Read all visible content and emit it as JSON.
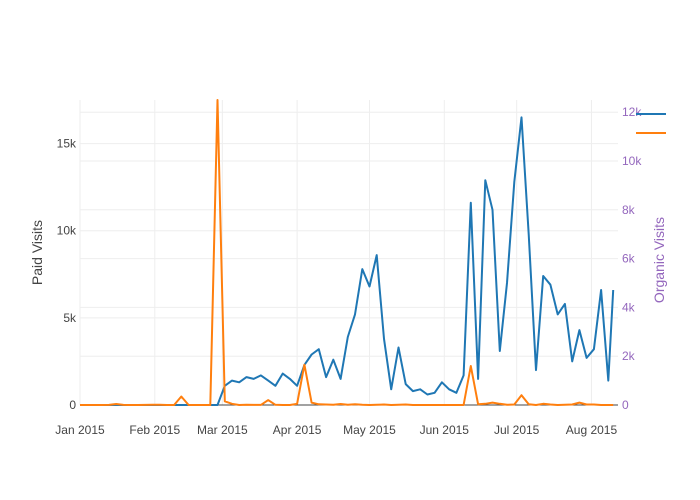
{
  "chart_data": {
    "type": "line",
    "title": "",
    "x_dates": [
      "2015-01-01",
      "2015-01-04",
      "2015-01-07",
      "2015-01-10",
      "2015-01-13",
      "2015-01-16",
      "2015-01-19",
      "2015-01-22",
      "2015-01-25",
      "2015-01-28",
      "2015-01-31",
      "2015-02-03",
      "2015-02-06",
      "2015-02-09",
      "2015-02-12",
      "2015-02-15",
      "2015-02-18",
      "2015-02-21",
      "2015-02-24",
      "2015-02-27",
      "2015-03-02",
      "2015-03-05",
      "2015-03-08",
      "2015-03-11",
      "2015-03-14",
      "2015-03-17",
      "2015-03-20",
      "2015-03-23",
      "2015-03-26",
      "2015-03-29",
      "2015-04-01",
      "2015-04-04",
      "2015-04-07",
      "2015-04-10",
      "2015-04-13",
      "2015-04-16",
      "2015-04-19",
      "2015-04-22",
      "2015-04-25",
      "2015-04-28",
      "2015-05-01",
      "2015-05-04",
      "2015-05-07",
      "2015-05-10",
      "2015-05-13",
      "2015-05-16",
      "2015-05-19",
      "2015-05-22",
      "2015-05-25",
      "2015-05-28",
      "2015-05-31",
      "2015-06-03",
      "2015-06-06",
      "2015-06-09",
      "2015-06-12",
      "2015-06-15",
      "2015-06-18",
      "2015-06-21",
      "2015-06-24",
      "2015-06-27",
      "2015-06-30",
      "2015-07-03",
      "2015-07-06",
      "2015-07-09",
      "2015-07-12",
      "2015-07-15",
      "2015-07-18",
      "2015-07-21",
      "2015-07-24",
      "2015-07-27",
      "2015-07-30",
      "2015-08-02",
      "2015-08-05",
      "2015-08-08",
      "2015-08-10"
    ],
    "series": [
      {
        "axis": "left",
        "color": "#1f77b4",
        "values": [
          0,
          0,
          0,
          0,
          0,
          0,
          0,
          0,
          0,
          0,
          0,
          0,
          0,
          0,
          0,
          0,
          0,
          0,
          0,
          0,
          1100,
          1400,
          1300,
          1600,
          1500,
          1700,
          1400,
          1100,
          1800,
          1500,
          1100,
          2300,
          2900,
          3200,
          1600,
          2600,
          1500,
          3900,
          5200,
          7800,
          6800,
          8600,
          3800,
          900,
          3300,
          1200,
          800,
          900,
          600,
          700,
          1300,
          900,
          700,
          1700,
          11600,
          1500,
          12900,
          11200,
          3100,
          7000,
          12800,
          16500,
          9800,
          2000,
          7400,
          6900,
          5200,
          5800,
          2500,
          4300,
          2700,
          3200,
          6600,
          1400,
          6600
        ]
      },
      {
        "axis": "right",
        "color": "#ff7f0e",
        "values": [
          0,
          0,
          0,
          0,
          5,
          40,
          5,
          0,
          0,
          5,
          10,
          10,
          0,
          0,
          350,
          0,
          0,
          0,
          0,
          12500,
          150,
          50,
          0,
          10,
          5,
          5,
          200,
          10,
          0,
          0,
          50,
          1650,
          100,
          30,
          20,
          10,
          40,
          10,
          30,
          10,
          0,
          10,
          20,
          0,
          10,
          20,
          0,
          0,
          0,
          0,
          0,
          0,
          0,
          0,
          1600,
          30,
          50,
          100,
          50,
          10,
          20,
          400,
          30,
          0,
          50,
          20,
          0,
          10,
          20,
          100,
          20,
          20,
          0,
          0,
          0
        ]
      }
    ],
    "xaxis": {
      "range": [
        "2015-01-01",
        "2015-08-12"
      ],
      "ticks": [
        "2015-01-01",
        "2015-02-01",
        "2015-03-01",
        "2015-04-01",
        "2015-05-01",
        "2015-06-01",
        "2015-07-01",
        "2015-08-01"
      ],
      "tick_labels": [
        "Jan 2015",
        "Feb 2015",
        "Mar 2015",
        "Apr 2015",
        "May 2015",
        "Jun 2015",
        "Jul 2015",
        "Aug 2015"
      ]
    },
    "yaxis_left": {
      "title": "Paid Visits",
      "range": [
        0,
        17500
      ],
      "ticks": [
        0,
        5000,
        10000,
        15000
      ],
      "tick_labels": [
        "0",
        "5k",
        "10k",
        "15k"
      ],
      "color": "#444444"
    },
    "yaxis_right": {
      "title": "Organic Visits",
      "range": [
        0,
        12500
      ],
      "ticks": [
        0,
        2000,
        4000,
        6000,
        8000,
        10000,
        12000
      ],
      "tick_labels": [
        "0",
        "2k",
        "4k",
        "6k",
        "8k",
        "10k",
        "12k"
      ],
      "color": "#9467bd"
    },
    "grid": true,
    "legend": {
      "position": "top-right",
      "entries": [
        "",
        ""
      ]
    }
  }
}
